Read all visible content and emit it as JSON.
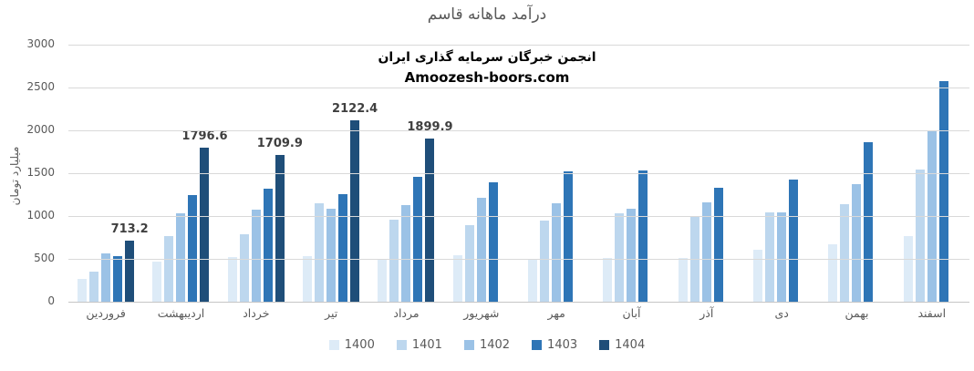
{
  "title": "درآمد ماهانه قاسم",
  "watermark": {
    "line1": "انجمن خبرگان سرمایه گذاری ایران",
    "line2": "Amoozesh-boors.com"
  },
  "chart_data": {
    "type": "bar",
    "title": "درآمد ماهانه قاسم",
    "xlabel": "",
    "ylabel": "میلیارد تومان",
    "ylim": [
      0,
      3000
    ],
    "ytick_step": 500,
    "grid": true,
    "legend_position": "bottom",
    "categories": [
      "فروردین",
      "اردیبهشت",
      "خرداد",
      "تیر",
      "مرداد",
      "شهریور",
      "مهر",
      "آبان",
      "آذر",
      "دی",
      "بهمن",
      "اسفند"
    ],
    "series": [
      {
        "name": "1400",
        "color": "#ddebf7",
        "values": [
          265,
          470,
          520,
          530,
          490,
          545,
          500,
          515,
          510,
          605,
          670,
          770
        ]
      },
      {
        "name": "1401",
        "color": "#bdd7ee",
        "values": [
          355,
          770,
          790,
          1150,
          960,
          890,
          945,
          1030,
          1005,
          1040,
          1140,
          1545
        ]
      },
      {
        "name": "1402",
        "color": "#9bc2e6",
        "values": [
          565,
          1030,
          1070,
          1090,
          1130,
          1210,
          1150,
          1080,
          1155,
          1045,
          1370,
          2000
        ]
      },
      {
        "name": "1403",
        "color": "#2e75b6",
        "values": [
          535,
          1240,
          1320,
          1255,
          1460,
          1390,
          1520,
          1530,
          1330,
          1430,
          1865,
          2570
        ]
      },
      {
        "name": "1404",
        "color": "#1f4e79",
        "values": [
          713.2,
          1796.6,
          1709.9,
          2122.4,
          1899.9,
          null,
          null,
          null,
          null,
          null,
          null,
          null
        ],
        "data_labels": [
          "713.2",
          "1796.6",
          "1709.9",
          "2122.4",
          "1899.9",
          "",
          "",
          "",
          "",
          "",
          "",
          ""
        ]
      }
    ]
  },
  "colors": {
    "gridline": "#d9d9d9",
    "axis_line": "#c6c6c6",
    "tick_text": "#595959",
    "title_text": "#595959",
    "data_label_text": "#3f3f3f"
  }
}
